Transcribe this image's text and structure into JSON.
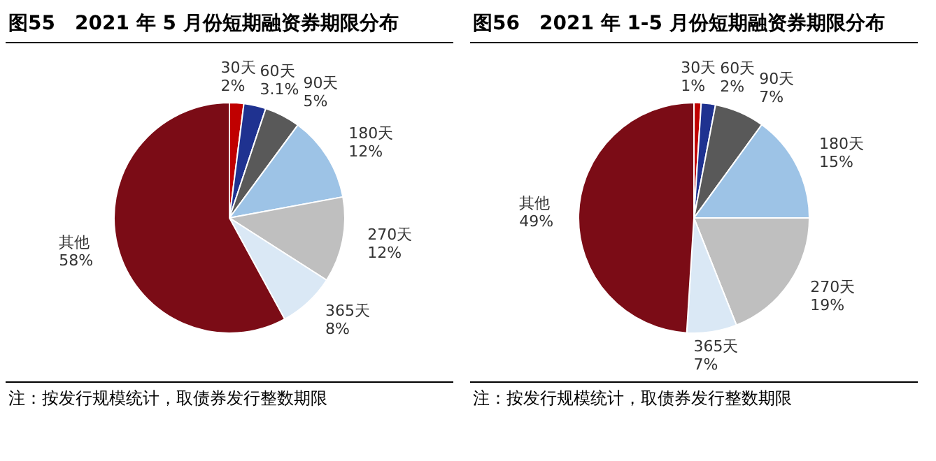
{
  "chart_data": [
    {
      "type": "pie",
      "title": "图55　2021 年 5 月份短期融资券期限分布",
      "categories": [
        "30天",
        "60天",
        "90天",
        "180天",
        "270天",
        "365天",
        "其他"
      ],
      "values": [
        2,
        3.1,
        5,
        12,
        12,
        8,
        58
      ],
      "value_labels": [
        "2%",
        "3.1%",
        "5%",
        "12%",
        "12%",
        "8%",
        "58%"
      ],
      "colors": [
        "#c00000",
        "#1f3290",
        "#595959",
        "#9dc3e6",
        "#bfbfbf",
        "#dae8f5",
        "#7b0c16"
      ],
      "legend": false,
      "annotations": [
        "注：按发行规模统计，取债券发行整数期限"
      ]
    },
    {
      "type": "pie",
      "title": "图56　2021 年 1-5 月份短期融资券期限分布",
      "categories": [
        "30天",
        "60天",
        "90天",
        "180天",
        "270天",
        "365天",
        "其他"
      ],
      "values": [
        1,
        2,
        7,
        15,
        19,
        7,
        49
      ],
      "value_labels": [
        "1%",
        "2%",
        "7%",
        "15%",
        "19%",
        "7%",
        "49%"
      ],
      "colors": [
        "#c00000",
        "#1f3290",
        "#595959",
        "#9dc3e6",
        "#bfbfbf",
        "#dae8f5",
        "#7b0c16"
      ],
      "legend": false,
      "annotations": [
        "注：按发行规模统计，取债券发行整数期限"
      ]
    }
  ]
}
